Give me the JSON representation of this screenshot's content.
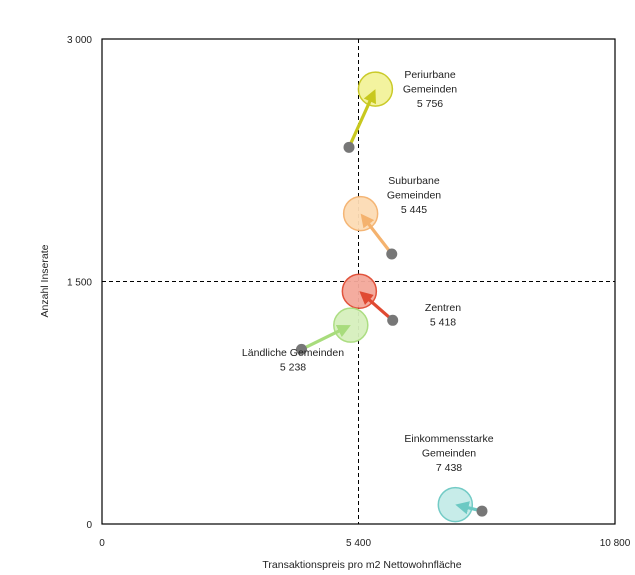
{
  "chart_data": {
    "type": "scatter",
    "title": "",
    "xlabel": "Transaktionspreis pro m2 Nettowohnfläche",
    "ylabel": "Anzahl Inserate",
    "xlim": [
      0,
      10800
    ],
    "ylim": [
      0,
      3000
    ],
    "x_ticks": [
      {
        "value": 0,
        "label": "0"
      },
      {
        "value": 5400,
        "label": "5 400"
      },
      {
        "value": 10800,
        "label": "10 800"
      }
    ],
    "y_ticks": [
      {
        "value": 0,
        "label": "0"
      },
      {
        "value": 1500,
        "label": "1 500"
      },
      {
        "value": 3000,
        "label": "3 000"
      }
    ],
    "reference_lines": {
      "x": 5400,
      "y": 1500
    },
    "grid": false,
    "legend": "none",
    "series": [
      {
        "name": "Periurbane Gemeinden",
        "label_lines": [
          "Periurbane",
          "Gemeinden",
          "5 756"
        ],
        "from": {
          "x": 5200,
          "y": 2330
        },
        "to": {
          "x": 5756,
          "y": 2690
        },
        "color": "#c8c81e",
        "fill": "#f3f39a"
      },
      {
        "name": "Suburbane Gemeinden",
        "label_lines": [
          "Suburbane",
          "Gemeinden",
          "5 445"
        ],
        "from": {
          "x": 6100,
          "y": 1670
        },
        "to": {
          "x": 5445,
          "y": 1920
        },
        "color": "#f4b26e",
        "fill": "#fcdcb5"
      },
      {
        "name": "Zentren",
        "label_lines": [
          "Zentren",
          "5 418"
        ],
        "from": {
          "x": 6120,
          "y": 1260
        },
        "to": {
          "x": 5418,
          "y": 1440
        },
        "color": "#e04a32",
        "fill": "#f4a89a"
      },
      {
        "name": "Ländliche Gemeinden",
        "label_lines": [
          "Ländliche Gemeinden",
          "5 238"
        ],
        "from": {
          "x": 4200,
          "y": 1080
        },
        "to": {
          "x": 5238,
          "y": 1230
        },
        "color": "#a8dc7c",
        "fill": "#d6f0bd"
      },
      {
        "name": "Einkommensstarke Gemeinden",
        "label_lines": [
          "Einkommensstarke",
          "Gemeinden",
          "7 438"
        ],
        "from": {
          "x": 8000,
          "y": 80
        },
        "to": {
          "x": 7438,
          "y": 120
        },
        "color": "#6cc9c3",
        "fill": "#c5ebe8"
      }
    ]
  }
}
